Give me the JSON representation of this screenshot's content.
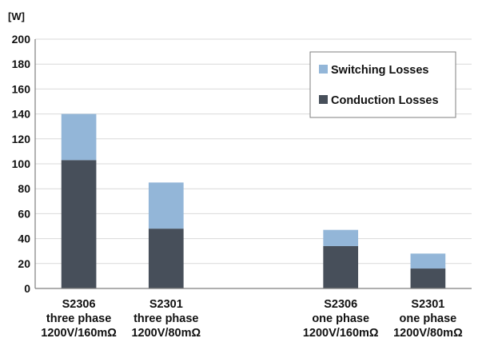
{
  "chart_data": {
    "type": "bar",
    "stacked": true,
    "unit_label": "[W]",
    "title": "",
    "xlabel": "",
    "ylabel": "",
    "ylim": [
      0,
      200
    ],
    "yticks": [
      0,
      20,
      40,
      60,
      80,
      100,
      120,
      140,
      160,
      180,
      200
    ],
    "grid": true,
    "legend_position": "top-right",
    "categories": [
      [
        "S2306",
        "three phase",
        "1200V/160mΩ"
      ],
      [
        "S2301",
        "three phase",
        "1200V/80mΩ"
      ],
      [
        "",
        "",
        ""
      ],
      [
        "S2306",
        "one phase",
        "1200V/160mΩ"
      ],
      [
        "S2301",
        "one phase",
        "1200V/80mΩ"
      ]
    ],
    "series": [
      {
        "name": "Conduction Losses",
        "color": "#474f5a",
        "values": [
          103,
          48,
          0,
          34,
          16
        ]
      },
      {
        "name": "Switching Losses",
        "color": "#93b6d8",
        "values": [
          37,
          37,
          0,
          13,
          12
        ]
      }
    ],
    "legend_order": [
      1,
      0
    ]
  }
}
